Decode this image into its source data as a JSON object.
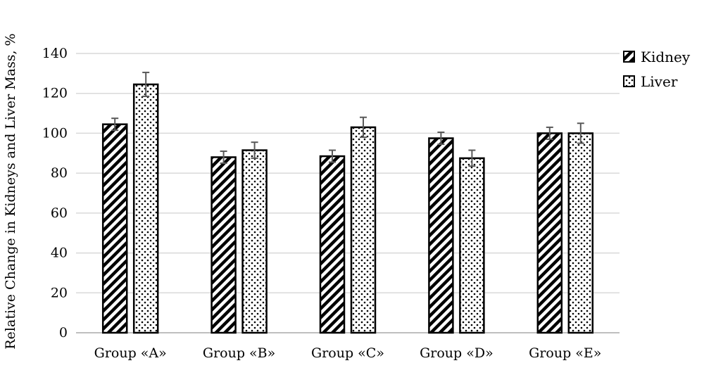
{
  "chart_data": {
    "type": "bar",
    "title": "",
    "xlabel": "",
    "ylabel": "Relative Change in Kidneys and Liver Mass, %",
    "ylim": [
      0,
      140
    ],
    "yticks": [
      0,
      20,
      40,
      60,
      80,
      100,
      120,
      140
    ],
    "grid": true,
    "legend_position": "top-right",
    "categories": [
      "Group «A»",
      "Group «B»",
      "Group «C»",
      "Group «D»",
      "Group «E»"
    ],
    "series": [
      {
        "name": "Kidney",
        "pattern": "diagonal-hatch",
        "values": [
          104.5,
          88,
          88.5,
          97.5,
          100
        ],
        "errors": [
          3,
          3,
          3,
          3,
          3
        ]
      },
      {
        "name": "Liver",
        "pattern": "dots",
        "values": [
          124.5,
          91.5,
          103,
          87.5,
          100
        ],
        "errors": [
          6,
          4,
          5,
          4,
          5
        ]
      }
    ],
    "colors": {
      "bar_stroke": "#000000",
      "grid": "#d9d9d9",
      "axis": "#bfbfbf",
      "error_bar": "#595959"
    }
  }
}
